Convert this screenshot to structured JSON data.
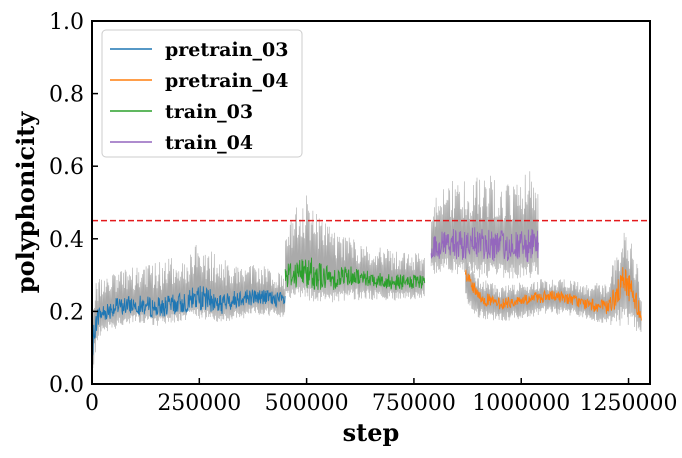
{
  "chart_data": {
    "type": "line",
    "title": "",
    "xlabel": "step",
    "ylabel": "polyphonicity",
    "xlim": [
      0,
      1300000
    ],
    "ylim": [
      0.0,
      1.0
    ],
    "x_ticks": [
      0,
      250000,
      500000,
      750000,
      1000000,
      1250000
    ],
    "x_tick_labels": [
      "0",
      "250000",
      "500000",
      "750000",
      "1000000",
      "1250000"
    ],
    "y_ticks": [
      0.0,
      0.2,
      0.4,
      0.6,
      0.8,
      1.0
    ],
    "y_tick_labels": [
      "0.0",
      "0.2",
      "0.4",
      "0.6",
      "0.8",
      "1.0"
    ],
    "grid": false,
    "legend_position": "top-left",
    "reference_line": {
      "y": 0.45,
      "color": "#e31a1c",
      "style": "dashed"
    },
    "raw_band_color": "#aaaaaa",
    "series": [
      {
        "name": "pretrain_03",
        "color": "#1f77b4",
        "x": [
          0,
          5000,
          15000,
          50000,
          100000,
          150000,
          200000,
          250000,
          300000,
          350000,
          400000,
          450000
        ],
        "y": [
          0.03,
          0.15,
          0.19,
          0.21,
          0.22,
          0.21,
          0.22,
          0.24,
          0.22,
          0.24,
          0.24,
          0.23
        ],
        "y_low": [
          0.0,
          0.06,
          0.13,
          0.15,
          0.17,
          0.16,
          0.17,
          0.18,
          0.17,
          0.18,
          0.19,
          0.18
        ],
        "y_high": [
          0.12,
          0.27,
          0.3,
          0.31,
          0.33,
          0.34,
          0.35,
          0.4,
          0.35,
          0.33,
          0.33,
          0.31
        ]
      },
      {
        "name": "pretrain_04",
        "color": "#ff7f0e",
        "x": [
          870000,
          900000,
          950000,
          1000000,
          1050000,
          1100000,
          1150000,
          1200000,
          1220000,
          1240000,
          1260000,
          1280000
        ],
        "y": [
          0.3,
          0.24,
          0.22,
          0.23,
          0.24,
          0.24,
          0.22,
          0.21,
          0.24,
          0.29,
          0.25,
          0.19
        ],
        "y_low": [
          0.22,
          0.18,
          0.17,
          0.18,
          0.19,
          0.19,
          0.18,
          0.16,
          0.16,
          0.15,
          0.15,
          0.14
        ],
        "y_high": [
          0.35,
          0.3,
          0.27,
          0.28,
          0.29,
          0.29,
          0.28,
          0.29,
          0.36,
          0.43,
          0.4,
          0.26
        ]
      },
      {
        "name": "train_03",
        "color": "#2ca02c",
        "x": [
          450000,
          500000,
          550000,
          600000,
          650000,
          700000,
          750000,
          775000
        ],
        "y": [
          0.3,
          0.31,
          0.29,
          0.3,
          0.29,
          0.28,
          0.28,
          0.28
        ],
        "y_low": [
          0.23,
          0.23,
          0.22,
          0.23,
          0.23,
          0.23,
          0.23,
          0.24
        ],
        "y_high": [
          0.45,
          0.52,
          0.44,
          0.41,
          0.38,
          0.37,
          0.36,
          0.36
        ]
      },
      {
        "name": "train_04",
        "color": "#9467bd",
        "x": [
          790000,
          825000,
          860000,
          900000,
          950000,
          1000000,
          1020000,
          1040000
        ],
        "y": [
          0.37,
          0.39,
          0.38,
          0.39,
          0.38,
          0.38,
          0.38,
          0.38
        ],
        "y_low": [
          0.3,
          0.31,
          0.3,
          0.29,
          0.29,
          0.29,
          0.29,
          0.3
        ],
        "y_high": [
          0.52,
          0.58,
          0.56,
          0.58,
          0.57,
          0.56,
          0.6,
          0.56
        ]
      }
    ]
  }
}
